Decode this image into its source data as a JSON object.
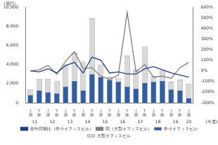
{
  "chart_data": {
    "type": "bar",
    "stacked": true,
    "grid": false,
    "legend": "bottom",
    "y_label": "（億円）",
    "x_label": "(年度)",
    "categories": [
      "上期",
      "下期",
      "上期",
      "下期",
      "上期",
      "下期",
      "上期",
      "下期",
      "上期",
      "下期",
      "上期",
      "下期",
      "上期",
      "下期",
      "上期",
      "下期",
      "上期",
      "下期",
      "上期"
    ],
    "category_years": [
      "11",
      "11",
      "12",
      "12",
      "13",
      "13",
      "14",
      "14",
      "15",
      "15",
      "16",
      "16",
      "17",
      "17",
      "18",
      "18",
      "19",
      "19",
      "20"
    ],
    "ylim": [
      0,
      10000
    ],
    "yticks": [
      0,
      {
        "value": 2000,
        "label": "2,000"
      },
      {
        "value": 4000,
        "label": "4,000"
      },
      {
        "value": 6000,
        "label": "6,000"
      },
      {
        "value": 8000,
        "label": "8,000"
      },
      {
        "value": 10000,
        "label": "10,000"
      }
    ],
    "y2lim": [
      -300,
      600
    ],
    "y2ticks": [
      {
        "value": -300,
        "label": "-300%"
      },
      {
        "value": -200,
        "label": "-200%"
      },
      {
        "value": -100,
        "label": "-100%"
      },
      {
        "value": 0,
        "label": "0%"
      },
      {
        "value": 100,
        "label": "100%"
      },
      {
        "value": 200,
        "label": "200%"
      },
      {
        "value": 300,
        "label": "300%"
      },
      {
        "value": 400,
        "label": "400%"
      },
      {
        "value": 500,
        "label": "500%"
      },
      {
        "value": 600,
        "label": "600%"
      }
    ],
    "series": [
      {
        "name": "中小オフィスビル",
        "type": "bar",
        "color": "#2e5ea8",
        "values": [
          800,
          1300,
          1100,
          1000,
          1700,
          2300,
          1300,
          3000,
          2700,
          2400,
          2200,
          1700,
          1500,
          2100,
          2200,
          2300,
          1400,
          1300,
          500
        ]
      },
      {
        "name": "大型オフィスビル",
        "type": "bar",
        "color": "#d9d9d9",
        "values": [
          600,
          1200,
          1400,
          1300,
          2300,
          2900,
          3000,
          5800,
          1300,
          300,
          400,
          3200,
          2000,
          3800,
          600,
          1100,
          800,
          1100,
          1500
        ]
      },
      {
        "name": "前年同期比（中小オフィスビル）",
        "type": "line",
        "axis": "y2",
        "color": "#1f3f8f",
        "marker": "none",
        "line_style": "solid",
        "values": [
          0,
          -10,
          20,
          -20,
          50,
          80,
          -20,
          130,
          100,
          -20,
          -10,
          -30,
          -30,
          20,
          40,
          10,
          -20,
          -40,
          -60
        ]
      },
      {
        "name": "同（大型オフィスビル）",
        "type": "line",
        "axis": "y2",
        "color": "#7f7f7f",
        "marker": "none",
        "line_style": "solid",
        "values": [
          0,
          10,
          50,
          -30,
          90,
          180,
          20,
          30,
          -50,
          -80,
          -40,
          550,
          -10,
          60,
          -60,
          -50,
          -70,
          30,
          80
        ]
      }
    ]
  }
}
